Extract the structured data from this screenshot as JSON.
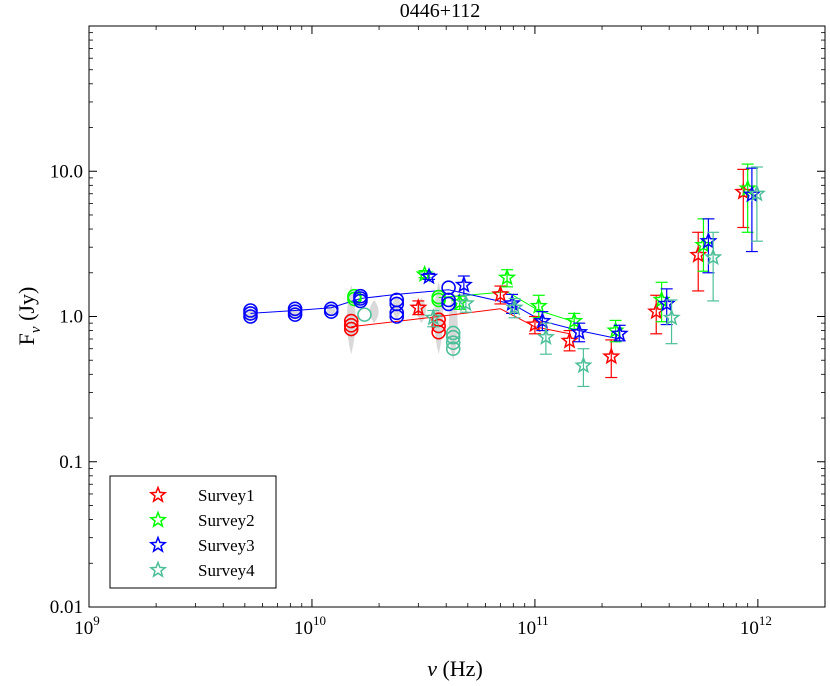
{
  "chart_data": {
    "type": "scatter",
    "title": "0446+112",
    "xlabel": "ν (Hz)",
    "ylabel": "Fν (Jy)",
    "xscale": "log",
    "yscale": "log",
    "xlim": [
      1000000000.0,
      2000000000000.0
    ],
    "ylim": [
      0.01,
      100
    ],
    "x_ticks": [
      {
        "value": 1000000000.0,
        "base": "10",
        "exp": "9"
      },
      {
        "value": 10000000000.0,
        "base": "10",
        "exp": "10"
      },
      {
        "value": 100000000000.0,
        "base": "10",
        "exp": "11"
      },
      {
        "value": 1000000000000.0,
        "base": "10",
        "exp": "12"
      }
    ],
    "y_ticks": [
      {
        "value": 0.01,
        "label": "0.01"
      },
      {
        "value": 0.1,
        "label": "0.1"
      },
      {
        "value": 1,
        "label": "1.0"
      },
      {
        "value": 10,
        "label": "10.0"
      }
    ],
    "legend_position": "bottom-left",
    "series": [
      {
        "name": "Survey1",
        "color": "#ff0000",
        "circles": [
          {
            "x": 15000000000.0,
            "y": [
              0.82,
              0.87,
              0.93
            ]
          },
          {
            "x": 37000000000.0,
            "y": [
              0.78,
              0.86,
              0.95
            ]
          }
        ],
        "stars": [
          {
            "x": 30000000000.0,
            "y": 1.15,
            "lo": 1.03,
            "hi": 1.28
          },
          {
            "x": 70000000000.0,
            "y": 1.42,
            "lo": 1.22,
            "hi": 1.62
          },
          {
            "x": 100000000000.0,
            "y": 0.88,
            "lo": 0.76,
            "hi": 1.0
          },
          {
            "x": 143000000000.0,
            "y": 0.68,
            "lo": 0.58,
            "hi": 0.8
          },
          {
            "x": 220000000000.0,
            "y": 0.53,
            "lo": 0.38,
            "hi": 0.69
          },
          {
            "x": 350000000000.0,
            "y": 1.08,
            "lo": 0.76,
            "hi": 1.4
          },
          {
            "x": 540000000000.0,
            "y": 2.65,
            "lo": 1.5,
            "hi": 3.8
          },
          {
            "x": 860000000000.0,
            "y": 7.2,
            "lo": 4.1,
            "hi": 10.3
          }
        ],
        "line": [
          [
            15000000000.0,
            0.85
          ],
          [
            37000000000.0,
            1.0
          ],
          [
            70000000000.0,
            1.13
          ],
          [
            100000000000.0,
            0.85
          ],
          [
            143000000000.0,
            0.76
          ]
        ]
      },
      {
        "name": "Survey2",
        "color": "#00ff00",
        "circles": [
          {
            "x": 15500000000.0,
            "y": [
              1.32,
              1.38
            ]
          },
          {
            "x": 37000000000.0,
            "y": [
              1.3,
              1.36
            ]
          }
        ],
        "stars": [
          {
            "x": 32000000000.0,
            "y": 1.95,
            "lo": 1.85,
            "hi": 2.07
          },
          {
            "x": 46000000000.0,
            "y": 1.25,
            "lo": 1.12,
            "hi": 1.38
          },
          {
            "x": 75000000000.0,
            "y": 1.85,
            "lo": 1.6,
            "hi": 2.1
          },
          {
            "x": 104000000000.0,
            "y": 1.18,
            "lo": 0.98,
            "hi": 1.4
          },
          {
            "x": 150000000000.0,
            "y": 0.93,
            "lo": 0.82,
            "hi": 1.05
          },
          {
            "x": 230000000000.0,
            "y": 0.8,
            "lo": 0.67,
            "hi": 0.94
          },
          {
            "x": 370000000000.0,
            "y": 1.3,
            "lo": 0.92,
            "hi": 1.72
          },
          {
            "x": 570000000000.0,
            "y": 3.1,
            "lo": 2.05,
            "hi": 4.7
          },
          {
            "x": 900000000000.0,
            "y": 7.6,
            "lo": 3.8,
            "hi": 11.2
          }
        ],
        "line": [
          [
            37000000000.0,
            1.35
          ],
          [
            75000000000.0,
            1.48
          ],
          [
            104000000000.0,
            1.1
          ],
          [
            150000000000.0,
            0.92
          ]
        ]
      },
      {
        "name": "Survey3",
        "color": "#0000ff",
        "circles": [
          {
            "x": 5300000000.0,
            "y": [
              1.0,
              1.05,
              1.1
            ]
          },
          {
            "x": 8400000000.0,
            "y": [
              1.03,
              1.08,
              1.13
            ]
          },
          {
            "x": 12200000000.0,
            "y": [
              1.08,
              1.13
            ]
          },
          {
            "x": 16500000000.0,
            "y": [
              1.28,
              1.33,
              1.38
            ]
          },
          {
            "x": 24000000000.0,
            "y": [
              1.0,
              1.06,
              1.22,
              1.3
            ]
          },
          {
            "x": 41000000000.0,
            "y": [
              1.22,
              1.3,
              1.58
            ]
          }
        ],
        "stars": [
          {
            "x": 33500000000.0,
            "y": 1.88,
            "lo": 1.8,
            "hi": 1.98
          },
          {
            "x": 48000000000.0,
            "y": 1.65,
            "lo": 1.4,
            "hi": 1.9
          },
          {
            "x": 79000000000.0,
            "y": 1.23,
            "lo": 1.05,
            "hi": 1.42
          },
          {
            "x": 108000000000.0,
            "y": 0.93,
            "lo": 0.8,
            "hi": 1.08
          },
          {
            "x": 158000000000.0,
            "y": 0.78,
            "lo": 0.67,
            "hi": 0.9
          },
          {
            "x": 240000000000.0,
            "y": 0.76,
            "lo": 0.68,
            "hi": 0.87
          },
          {
            "x": 390000000000.0,
            "y": 1.22,
            "lo": 0.88,
            "hi": 1.55
          },
          {
            "x": 600000000000.0,
            "y": 3.3,
            "lo": 2.0,
            "hi": 4.7
          },
          {
            "x": 940000000000.0,
            "y": 6.9,
            "lo": 2.8,
            "hi": 10.5
          }
        ],
        "line": [
          [
            5300000000.0,
            1.05
          ],
          [
            8400000000.0,
            1.1
          ],
          [
            12200000000.0,
            1.15
          ],
          [
            16500000000.0,
            1.33
          ],
          [
            24000000000.0,
            1.42
          ],
          [
            41000000000.0,
            1.53
          ],
          [
            79000000000.0,
            1.22
          ],
          [
            108000000000.0,
            0.93
          ],
          [
            158000000000.0,
            0.8
          ],
          [
            240000000000.0,
            0.7
          ]
        ]
      },
      {
        "name": "Survey4",
        "color": "#4dbf99",
        "circles": [
          {
            "x": 17200000000.0,
            "y": [
              1.03
            ]
          },
          {
            "x": 43000000000.0,
            "y": [
              0.6,
              0.66,
              0.72,
              0.77
            ]
          }
        ],
        "stars": [
          {
            "x": 35000000000.0,
            "y": 0.98,
            "lo": 0.85,
            "hi": 1.1
          },
          {
            "x": 49000000000.0,
            "y": 1.23,
            "lo": 1.07,
            "hi": 1.4
          },
          {
            "x": 81000000000.0,
            "y": 1.15,
            "lo": 0.98,
            "hi": 1.33
          },
          {
            "x": 112000000000.0,
            "y": 0.72,
            "lo": 0.55,
            "hi": 0.9
          },
          {
            "x": 165000000000.0,
            "y": 0.46,
            "lo": 0.33,
            "hi": 0.6
          },
          {
            "x": 410000000000.0,
            "y": 0.98,
            "lo": 0.65,
            "hi": 1.3
          },
          {
            "x": 630000000000.0,
            "y": 2.55,
            "lo": 1.28,
            "hi": 3.8
          },
          {
            "x": 990000000000.0,
            "y": 7.0,
            "lo": 3.3,
            "hi": 10.7
          }
        ],
        "line": []
      }
    ],
    "gray_spread": [
      {
        "x": 5300000000.0,
        "lo": 0.93,
        "hi": 1.15
      },
      {
        "x": 8400000000.0,
        "lo": 0.95,
        "hi": 1.18
      },
      {
        "x": 12200000000.0,
        "lo": 1.0,
        "hi": 1.2
      },
      {
        "x": 15000000000.0,
        "lo": 0.55,
        "hi": 1.65
      },
      {
        "x": 19000000000.0,
        "lo": 0.9,
        "hi": 1.3
      },
      {
        "x": 24000000000.0,
        "lo": 0.95,
        "hi": 1.4
      },
      {
        "x": 31000000000.0,
        "lo": 0.9,
        "hi": 1.35
      },
      {
        "x": 37000000000.0,
        "lo": 0.55,
        "hi": 1.75
      },
      {
        "x": 43000000000.0,
        "lo": 0.5,
        "hi": 1.5
      }
    ]
  }
}
